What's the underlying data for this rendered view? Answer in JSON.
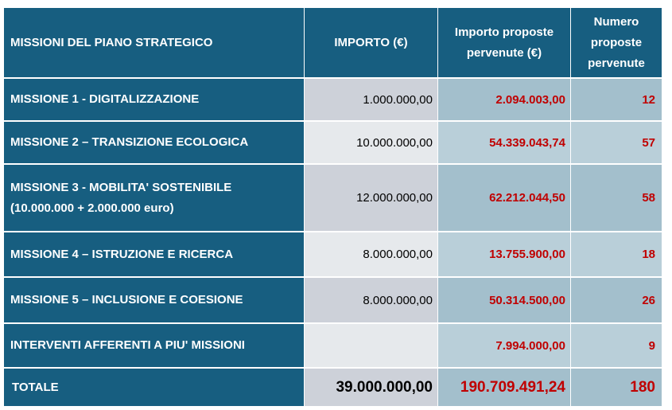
{
  "header": {
    "col1": "MISSIONI DEL PIANO STRATEGICO",
    "col2": "IMPORTO (€)",
    "col3_line1": "Importo proposte",
    "col3_line2": "pervenute (€)",
    "col4_line1": "Numero",
    "col4_line2": "proposte",
    "col4_line3": "pervenute"
  },
  "rows": [
    {
      "name": "MISSIONE 1 - DIGITALIZZAZIONE",
      "importo": "1.000.000,00",
      "importo_proposte": "2.094.003,00",
      "numero": "12"
    },
    {
      "name": "MISSIONE 2 – TRANSIZIONE ECOLOGICA",
      "importo": "10.000.000,00",
      "importo_proposte": "54.339.043,74",
      "numero": "57"
    },
    {
      "name": "MISSIONE 3 - MOBILITA' SOSTENIBILE",
      "name_line2": "(10.000.000 + 2.000.000 euro)",
      "importo": "12.000.000,00",
      "importo_proposte": "62.212.044,50",
      "numero": "58"
    },
    {
      "name": "MISSIONE 4 – ISTRUZIONE E RICERCA",
      "importo": "8.000.000,00",
      "importo_proposte": "13.755.900,00",
      "numero": "18"
    },
    {
      "name": "MISSIONE 5 – INCLUSIONE E COESIONE",
      "importo": "8.000.000,00",
      "importo_proposte": "50.314.500,00",
      "numero": "26"
    },
    {
      "name": "INTERVENTI AFFERENTI A PIU' MISSIONI",
      "importo": "",
      "importo_proposte": "7.994.000,00",
      "numero": "9"
    }
  ],
  "total": {
    "name": "TOTALE",
    "importo": "39.000.000,00",
    "importo_proposte": "190.709.491,24",
    "numero": "180"
  },
  "colors": {
    "header": "#175E80",
    "red": "#C00000",
    "grey_dark": "#CDD1D9",
    "grey_light": "#E6E9EC",
    "blue_dark": "#A3BFCC",
    "blue_light": "#B9CFD9"
  }
}
